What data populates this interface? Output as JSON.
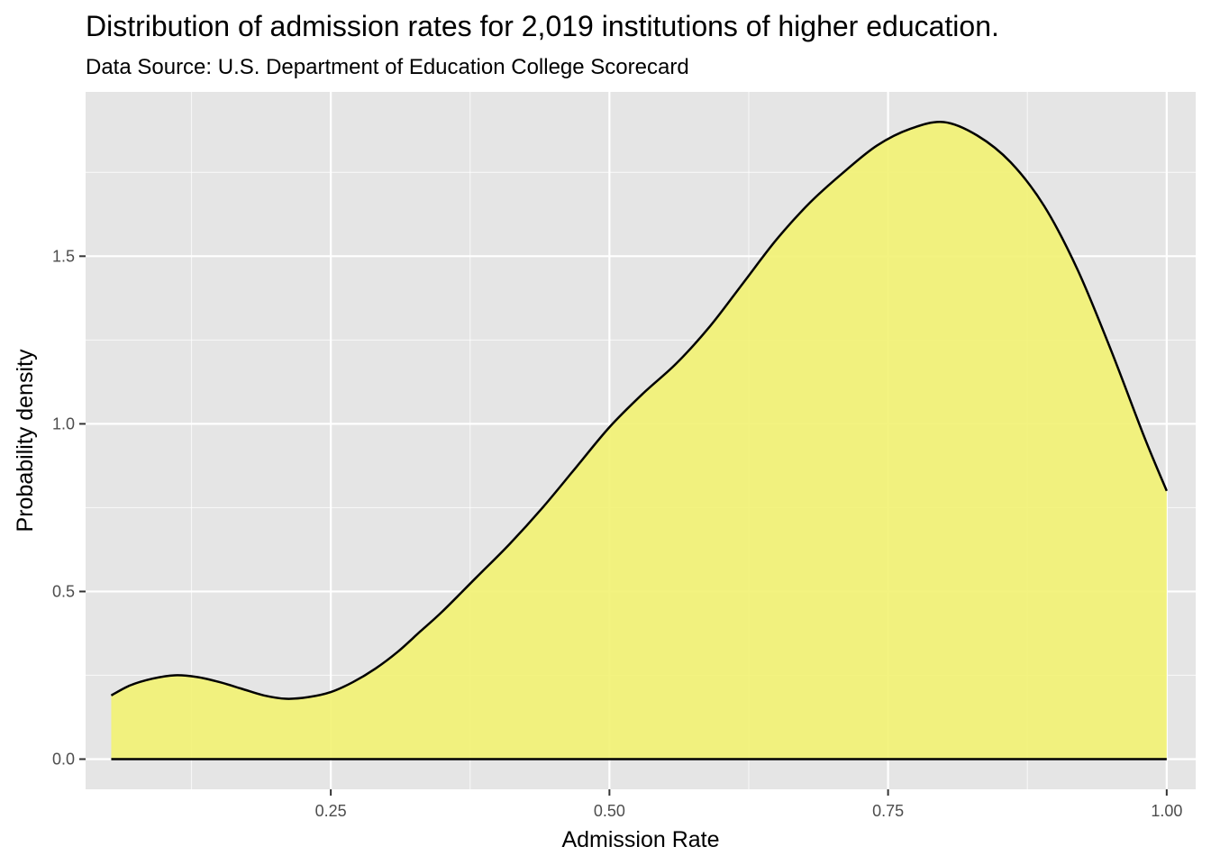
{
  "chart_data": {
    "type": "area",
    "title": "Distribution of admission rates for 2,019 institutions of higher education.",
    "subtitle": "Data Source: U.S. Department of Education College Scorecard",
    "xlabel": "Admission Rate",
    "ylabel": "Probability density",
    "xlim": [
      0.03,
      1.026
    ],
    "ylim": [
      -0.09,
      1.99
    ],
    "x_ticks": [
      0.25,
      0.5,
      0.75,
      1.0
    ],
    "x_tick_labels": [
      "0.25",
      "0.50",
      "0.75",
      "1.00"
    ],
    "y_ticks": [
      0.0,
      0.5,
      1.0,
      1.5
    ],
    "y_tick_labels": [
      "0.0",
      "0.5",
      "1.0",
      "1.5"
    ],
    "grid": true,
    "fill_color": "#f2f272",
    "line_color": "#000000",
    "panel_background": "#e5e5e5",
    "grid_color": "#ffffff",
    "x": [
      0.053,
      0.07,
      0.09,
      0.11,
      0.13,
      0.15,
      0.17,
      0.19,
      0.21,
      0.23,
      0.25,
      0.27,
      0.29,
      0.31,
      0.33,
      0.35,
      0.38,
      0.41,
      0.44,
      0.47,
      0.5,
      0.53,
      0.56,
      0.59,
      0.62,
      0.65,
      0.68,
      0.71,
      0.74,
      0.77,
      0.8,
      0.83,
      0.86,
      0.89,
      0.92,
      0.95,
      0.98,
      1.0
    ],
    "y": [
      0.19,
      0.22,
      0.24,
      0.25,
      0.245,
      0.23,
      0.21,
      0.19,
      0.18,
      0.185,
      0.2,
      0.23,
      0.27,
      0.32,
      0.38,
      0.44,
      0.54,
      0.64,
      0.75,
      0.87,
      0.99,
      1.09,
      1.18,
      1.29,
      1.42,
      1.55,
      1.66,
      1.75,
      1.83,
      1.88,
      1.9,
      1.86,
      1.78,
      1.65,
      1.46,
      1.22,
      0.96,
      0.8
    ]
  }
}
